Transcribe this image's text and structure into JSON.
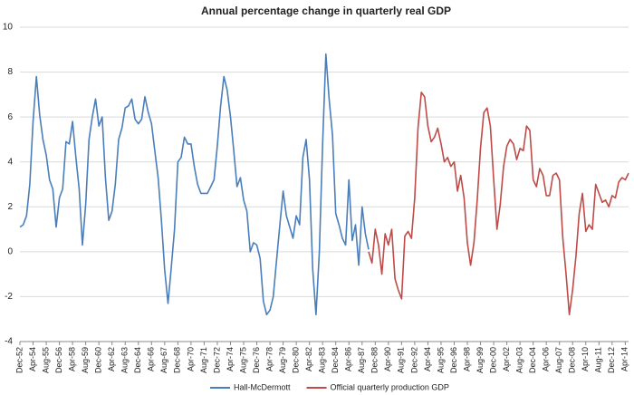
{
  "chart_data": {
    "type": "line",
    "title": "Annual percentage change in quarterly real GDP",
    "categories": [
      "Dec-52",
      null,
      null,
      null,
      "Apr-54",
      null,
      null,
      null,
      "Aug-55",
      null,
      null,
      null,
      "Dec-56",
      null,
      null,
      null,
      "Apr-58",
      null,
      null,
      null,
      "Aug-59",
      null,
      null,
      null,
      "Dec-60",
      null,
      null,
      null,
      "Apr-62",
      null,
      null,
      null,
      "Aug-63",
      null,
      null,
      null,
      "Dec-64",
      null,
      null,
      null,
      "Apr-66",
      null,
      null,
      null,
      "Aug-67",
      null,
      null,
      null,
      "Dec-68",
      null,
      null,
      null,
      "Apr-70",
      null,
      null,
      null,
      "Aug-71",
      null,
      null,
      null,
      "Dec-72",
      null,
      null,
      null,
      "Apr-74",
      null,
      null,
      null,
      "Aug-75",
      null,
      null,
      null,
      "Dec-76",
      null,
      null,
      null,
      "Apr-78",
      null,
      null,
      null,
      "Aug-79",
      null,
      null,
      null,
      "Dec-80",
      null,
      null,
      null,
      "Apr-82",
      null,
      null,
      null,
      "Aug-83",
      null,
      null,
      null,
      "Dec-84",
      null,
      null,
      null,
      "Apr-86",
      null,
      null,
      null,
      "Aug-87",
      null,
      null,
      null,
      "Dec-88",
      null,
      null,
      null,
      "Apr-90",
      null,
      null,
      null,
      "Aug-91",
      null,
      null,
      null,
      "Dec-92",
      null,
      null,
      null,
      "Apr-94",
      null,
      null,
      null,
      "Aug-95",
      null,
      null,
      null,
      "Dec-96",
      null,
      null,
      null,
      "Apr-98",
      null,
      null,
      null,
      "Aug-99",
      null,
      null,
      null,
      "Dec-00",
      null,
      null,
      null,
      "Apr-02",
      null,
      null,
      null,
      "Aug-03",
      null,
      null,
      null,
      "Dec-04",
      null,
      null,
      null,
      "Apr-06",
      null,
      null,
      null,
      "Aug-07",
      null,
      null,
      null,
      "Dec-08",
      null,
      null,
      null,
      "Apr-10",
      null,
      null,
      null,
      "Aug-11",
      null,
      null,
      null,
      "Dec-12",
      null,
      null,
      null,
      "Apr-14",
      null
    ],
    "series": [
      {
        "name": "Hall-McDermott",
        "color": "#4a7ebb",
        "values": [
          1.1,
          1.2,
          1.6,
          3.0,
          5.8,
          7.8,
          6.1,
          5.0,
          4.3,
          3.2,
          2.8,
          1.1,
          2.4,
          2.8,
          4.9,
          4.8,
          5.8,
          4.2,
          2.8,
          0.3,
          2.1,
          5.0,
          6.0,
          6.8,
          5.6,
          6.0,
          3.3,
          1.4,
          1.8,
          3.0,
          5.0,
          5.5,
          6.4,
          6.5,
          6.8,
          5.9,
          5.7,
          5.9,
          6.9,
          6.2,
          5.7,
          4.5,
          3.3,
          1.4,
          -0.8,
          -2.3,
          -0.7,
          1.0,
          4.0,
          4.2,
          5.1,
          4.8,
          4.8,
          3.8,
          3.0,
          2.6,
          2.6,
          2.6,
          2.9,
          3.2,
          4.7,
          6.5,
          7.8,
          7.2,
          6.0,
          4.5,
          2.9,
          3.3,
          2.3,
          1.8,
          0.0,
          0.4,
          0.3,
          -0.3,
          -2.2,
          -2.8,
          -2.6,
          -2.0,
          -0.4,
          1.2,
          2.7,
          1.6,
          1.1,
          0.6,
          1.6,
          1.2,
          4.2,
          5.0,
          3.2,
          -0.8,
          -2.8,
          0.0,
          4.8,
          8.8,
          6.8,
          5.2,
          1.7,
          1.2,
          0.6,
          0.3,
          3.2,
          0.5,
          1.2,
          -0.6,
          2.0,
          0.8,
          0.1,
          null,
          null,
          null,
          null,
          null,
          null,
          null,
          null,
          null,
          null,
          null,
          null,
          null,
          null,
          null,
          null,
          null,
          null,
          null,
          null,
          null,
          null,
          null,
          null,
          null,
          null,
          null,
          null,
          null,
          null,
          null,
          null,
          null,
          null,
          null,
          null,
          null,
          null,
          null,
          null,
          null,
          null,
          null,
          null,
          null,
          null,
          null,
          null,
          null,
          null,
          null,
          null,
          null,
          null,
          null,
          null,
          null,
          null,
          null,
          null,
          null,
          null,
          null,
          null,
          null,
          null,
          null,
          null,
          null,
          null,
          null,
          null,
          null,
          null,
          null,
          null,
          null,
          null,
          null
        ]
      },
      {
        "name": "Official quarterly production GDP",
        "color": "#be4b48",
        "values": [
          null,
          null,
          null,
          null,
          null,
          null,
          null,
          null,
          null,
          null,
          null,
          null,
          null,
          null,
          null,
          null,
          null,
          null,
          null,
          null,
          null,
          null,
          null,
          null,
          null,
          null,
          null,
          null,
          null,
          null,
          null,
          null,
          null,
          null,
          null,
          null,
          null,
          null,
          null,
          null,
          null,
          null,
          null,
          null,
          null,
          null,
          null,
          null,
          null,
          null,
          null,
          null,
          null,
          null,
          null,
          null,
          null,
          null,
          null,
          null,
          null,
          null,
          null,
          null,
          null,
          null,
          null,
          null,
          null,
          null,
          null,
          null,
          null,
          null,
          null,
          null,
          null,
          null,
          null,
          null,
          null,
          null,
          null,
          null,
          null,
          null,
          null,
          null,
          null,
          null,
          null,
          null,
          null,
          null,
          null,
          null,
          null,
          null,
          null,
          null,
          null,
          null,
          null,
          null,
          null,
          null,
          0.0,
          -0.5,
          1.0,
          0.3,
          -1.0,
          0.8,
          0.3,
          1.0,
          -1.2,
          -1.7,
          -2.1,
          0.7,
          0.9,
          0.6,
          2.4,
          5.5,
          7.1,
          6.9,
          5.6,
          4.9,
          5.1,
          5.5,
          4.8,
          4.0,
          4.2,
          3.8,
          4.0,
          2.7,
          3.4,
          2.4,
          0.4,
          -0.6,
          0.4,
          2.3,
          4.6,
          6.2,
          6.4,
          5.6,
          3.2,
          1.0,
          2.1,
          3.8,
          4.7,
          5.0,
          4.8,
          4.1,
          4.6,
          4.5,
          5.6,
          5.4,
          3.2,
          2.9,
          3.7,
          3.4,
          2.5,
          2.5,
          3.4,
          3.5,
          3.2,
          0.6,
          -1.0,
          -2.8,
          -1.7,
          -0.2,
          1.7,
          2.6,
          0.9,
          1.2,
          1.0,
          3.0,
          2.6,
          2.2,
          2.3,
          2.0,
          2.5,
          2.4,
          3.1,
          3.3,
          3.2,
          3.5
        ]
      }
    ],
    "ylim": [
      -4,
      10
    ],
    "yticks": [
      -4,
      -2,
      0,
      2,
      4,
      6,
      8,
      10
    ],
    "grid": true,
    "legend": "bottom"
  }
}
